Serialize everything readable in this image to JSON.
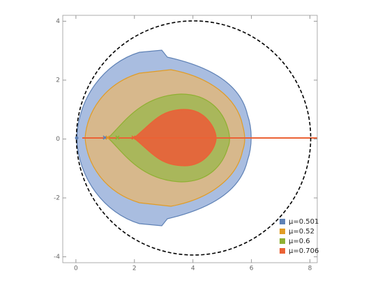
{
  "chart_data": {
    "type": "region",
    "series": [
      {
        "name": "μ=0.501",
        "color": "#5e81b5"
      },
      {
        "name": "μ=0.52",
        "color": "#e19c24"
      },
      {
        "name": "μ=0.6",
        "color": "#8fb032"
      },
      {
        "name": "μ=0.706",
        "color": "#eb6235"
      }
    ],
    "xlim": [
      -0.45,
      8.25
    ],
    "ylim": [
      -4.2,
      4.2
    ],
    "xticks": [
      0,
      2,
      4,
      6,
      8
    ],
    "yticks": [
      -4,
      -2,
      0,
      2,
      4
    ],
    "legend": "lower right",
    "grid": false
  }
}
